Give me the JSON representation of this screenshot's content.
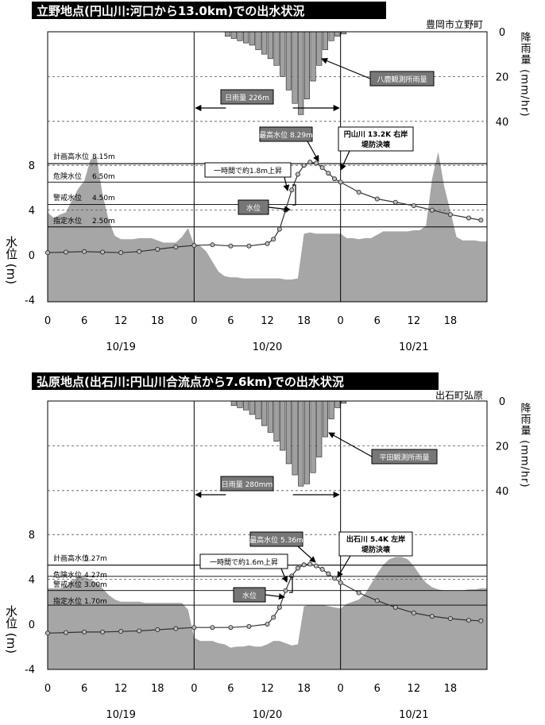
{
  "chart_data": [
    {
      "type": "line",
      "title": "立野地点(円山川:河口から13.0km)での出水状況",
      "location_label": "豊岡市立野町",
      "ylabel": "水位 (m)",
      "y2label": "降雨量 (mm/hr)",
      "ylim": [
        -4,
        10
      ],
      "y2lim": [
        0,
        50
      ],
      "y2_reversed": true,
      "yticks": [
        "-4",
        "0",
        "4",
        "8"
      ],
      "y2ticks": [
        "0",
        "20",
        "40"
      ],
      "x_tick_labels": [
        "0",
        "6",
        "12",
        "18",
        "0",
        "6",
        "12",
        "18",
        "0",
        "6",
        "12",
        "18"
      ],
      "date_labels": [
        "10/19",
        "10/20",
        "10/21"
      ],
      "grid": "dashed horizontal",
      "reference_lines": [
        {
          "label": "計画高水位",
          "value_text": "8.15m",
          "value": 8.15
        },
        {
          "label": "危険水位",
          "value_text": "6.50m",
          "value": 6.5
        },
        {
          "label": "警戒水位",
          "value_text": "4.50m",
          "value": 4.5
        },
        {
          "label": "指定水位",
          "value_text": "2.50m",
          "value": 2.5
        }
      ],
      "annotations": {
        "daily_rain": "日雨量 226m",
        "max_level": "最高水位 8.29m",
        "levee_break_line1": "円山川 13.2K 右岸",
        "levee_break_line2": "堤防決壊",
        "rise": "一時間で約1.8m上昇",
        "water_level": "水位",
        "gauge": "八鹿観測所雨量"
      },
      "series": [
        {
          "name": "水位",
          "x": [
            0,
            3,
            6,
            9,
            12,
            15,
            18,
            21,
            24,
            27,
            30,
            33,
            36,
            37,
            38,
            39,
            40,
            41,
            42,
            43,
            44,
            45,
            46,
            47,
            48,
            51,
            54,
            57,
            60,
            63,
            66,
            69,
            71
          ],
          "values": [
            0.2,
            0.25,
            0.3,
            0.25,
            0.2,
            0.3,
            0.5,
            0.7,
            0.85,
            0.9,
            0.8,
            0.8,
            1.0,
            1.4,
            2.3,
            4.0,
            5.8,
            7.2,
            8.0,
            8.29,
            8.2,
            7.8,
            7.3,
            6.8,
            6.5,
            5.6,
            5.0,
            4.7,
            4.4,
            4.0,
            3.6,
            3.3,
            3.1
          ]
        }
      ],
      "rain_hourly": [
        0,
        0,
        0,
        0,
        0,
        0,
        0,
        0,
        0,
        0,
        0,
        0,
        0,
        0,
        0,
        0,
        0,
        0,
        0,
        0,
        0,
        0,
        0,
        0,
        0,
        0,
        0,
        0,
        0,
        2,
        3,
        4,
        5,
        6,
        8,
        10,
        12,
        15,
        20,
        26,
        32,
        37,
        30,
        22,
        15,
        8,
        4,
        2,
        1,
        0,
        0,
        0,
        0,
        0,
        0,
        0,
        0,
        0,
        0,
        0,
        0,
        0,
        0,
        0,
        0,
        0,
        0,
        0,
        0,
        0,
        0,
        0
      ],
      "level_shading_hourly": [
        3.8,
        3.3,
        3.6,
        3.8,
        4.9,
        5.9,
        6.6,
        8.5,
        8.8,
        5.4,
        3.1,
        1.7,
        1.4,
        1.4,
        1.4,
        1.5,
        1.5,
        1.5,
        1.3,
        1.1,
        1.1,
        1.1,
        1.6,
        2.4,
        0.9,
        0.8,
        0.3,
        -0.6,
        -1.5,
        -1.9,
        -2.0,
        -2.0,
        -2.1,
        -2.1,
        -2.1,
        -2.1,
        -2.1,
        -2.1,
        -2.1,
        -2.2,
        -2.2,
        -2.1,
        1.9,
        2.0,
        1.9,
        1.9,
        1.9,
        1.9,
        1.9,
        1.5,
        1.5,
        1.4,
        1.5,
        1.5,
        1.8,
        2.1,
        2.1,
        2.1,
        2.1,
        2.1,
        2.2,
        2.2,
        2.6,
        6.8,
        9.2,
        6.1,
        3.9,
        1.6,
        1.3,
        1.3,
        1.3,
        1.2
      ]
    },
    {
      "type": "line",
      "title": "弘原地点(出石川:円山川合流点から7.6km)での出水状況",
      "location_label": "出石町弘原",
      "ylabel": "水位 (m)",
      "y2label": "降雨量 (mm/hr)",
      "ylim": [
        -4,
        10
      ],
      "y2lim": [
        0,
        50
      ],
      "y2_reversed": true,
      "yticks": [
        "-4",
        "0",
        "4",
        "8"
      ],
      "y2ticks": [
        "0",
        "20",
        "40"
      ],
      "x_tick_labels": [
        "0",
        "6",
        "12",
        "18",
        "0",
        "6",
        "12",
        "18",
        "0",
        "6",
        "12",
        "18"
      ],
      "date_labels": [
        "10/19",
        "10/20",
        "10/21"
      ],
      "grid": "dashed horizontal",
      "reference_lines": [
        {
          "label": "計画高水位",
          "value_text": "5.27m",
          "value": 5.27
        },
        {
          "label": "危険水位",
          "value_text": "4.27m",
          "value": 4.27
        },
        {
          "label": "警戒水位",
          "value_text": "3.00m",
          "value": 3.0
        },
        {
          "label": "指定水位",
          "value_text": "1.70m",
          "value": 1.7
        }
      ],
      "annotations": {
        "daily_rain": "日雨量 280mm",
        "max_level": "最高水位 5.36m",
        "levee_break_line1": "出石川 5.4K 左岸",
        "levee_break_line2": "堤防決壊",
        "rise": "一時間で約1.6m上昇",
        "water_level": "水位",
        "gauge": "平田観測所雨量"
      },
      "series": [
        {
          "name": "水位",
          "x": [
            0,
            3,
            6,
            9,
            12,
            15,
            18,
            21,
            24,
            27,
            30,
            33,
            36,
            37,
            38,
            39,
            40,
            41,
            42,
            43,
            44,
            45,
            46,
            47,
            48,
            51,
            54,
            57,
            60,
            63,
            66,
            69,
            71
          ],
          "values": [
            -0.8,
            -0.75,
            -0.7,
            -0.7,
            -0.65,
            -0.6,
            -0.5,
            -0.4,
            -0.3,
            -0.3,
            -0.3,
            -0.2,
            0.0,
            0.6,
            1.5,
            3.0,
            4.3,
            5.0,
            5.3,
            5.36,
            5.2,
            4.9,
            4.5,
            4.1,
            3.7,
            2.8,
            2.1,
            1.5,
            1.0,
            0.7,
            0.5,
            0.35,
            0.3
          ]
        }
      ],
      "rain_hourly": [
        0,
        0,
        0,
        0,
        0,
        0,
        0,
        0,
        0,
        0,
        0,
        0,
        0,
        0,
        0,
        0,
        0,
        0,
        0,
        0,
        0,
        0,
        0,
        0,
        0,
        0,
        0,
        0,
        0,
        0,
        2,
        3,
        4,
        6,
        8,
        11,
        14,
        18,
        22,
        28,
        33,
        38,
        37,
        32,
        25,
        16,
        8,
        3,
        1,
        0,
        0,
        0,
        0,
        0,
        0,
        0,
        0,
        0,
        0,
        0,
        0,
        0,
        0,
        0,
        0,
        0,
        0,
        0,
        0,
        0,
        0,
        0
      ],
      "level_shading_hourly": [
        3.2,
        3.2,
        3.2,
        3.4,
        3.9,
        4.2,
        4.2,
        4.0,
        3.7,
        3.2,
        2.6,
        2.2,
        2.0,
        2.0,
        2.0,
        2.0,
        1.9,
        1.9,
        1.9,
        1.9,
        1.9,
        1.9,
        1.9,
        1.3,
        -1.2,
        -1.5,
        -1.5,
        -1.5,
        -1.7,
        -1.8,
        -2.1,
        -2.0,
        -2.0,
        -1.9,
        -2.0,
        -2.0,
        -1.8,
        -1.5,
        -1.5,
        -1.7,
        -1.9,
        -1.8,
        1.6,
        1.7,
        1.7,
        1.7,
        1.6,
        1.5,
        1.4,
        1.8,
        2.0,
        2.2,
        2.7,
        3.6,
        4.5,
        5.3,
        5.8,
        6.0,
        6.0,
        5.8,
        5.2,
        4.4,
        3.7,
        3.3,
        3.1,
        3.0,
        3.0,
        3.0,
        3.0,
        3.1,
        3.1,
        3.2
      ]
    }
  ]
}
